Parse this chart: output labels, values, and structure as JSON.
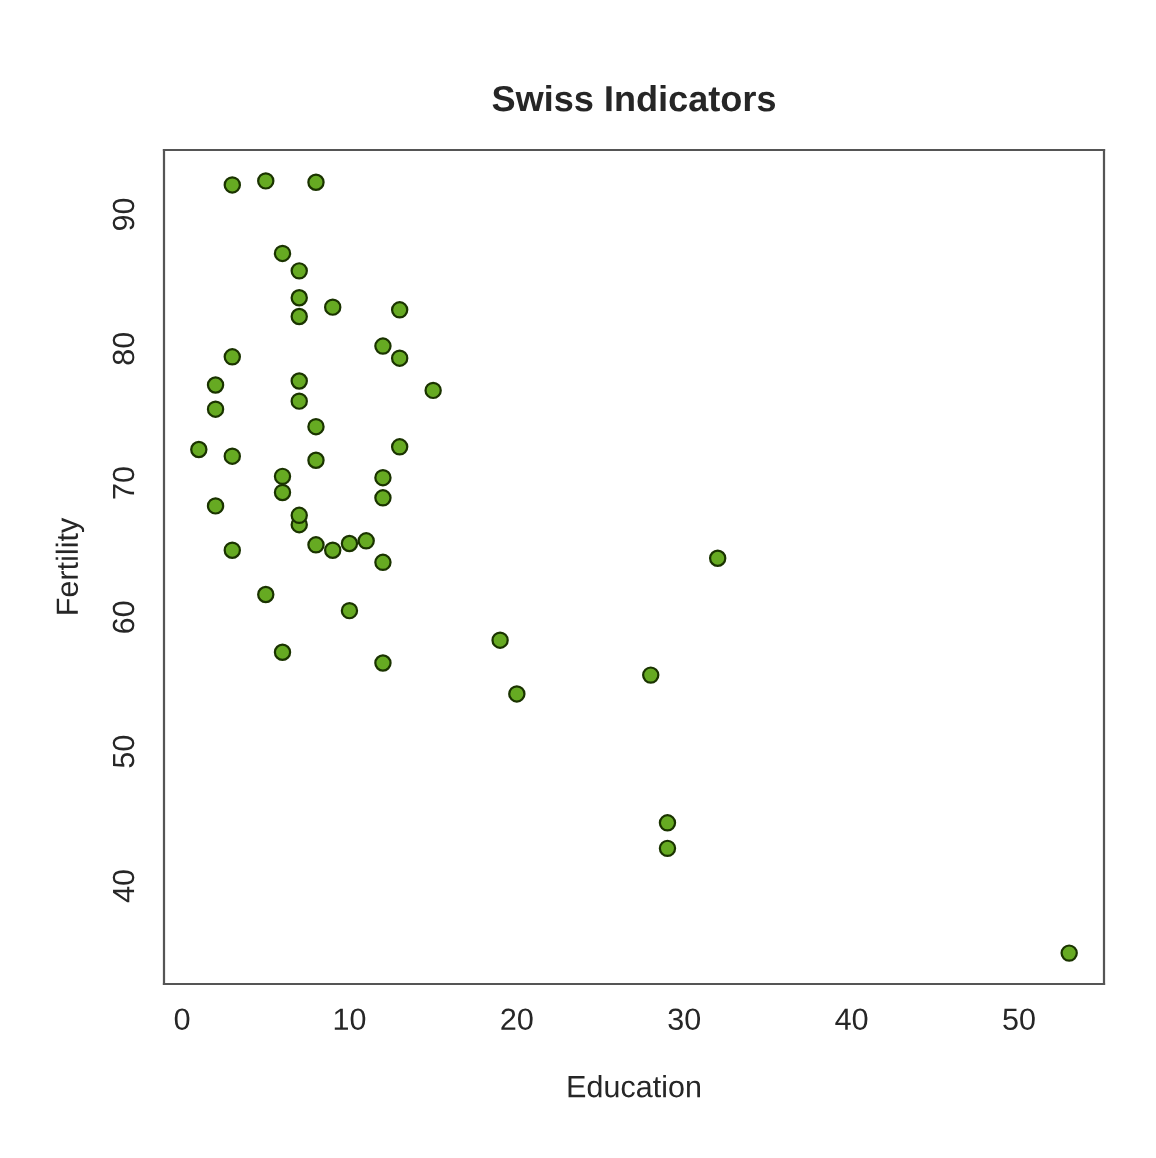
{
  "chart_data": {
    "type": "scatter",
    "title": "Swiss Indicators",
    "xlabel": "Education",
    "ylabel": "Fertility",
    "x": [
      12,
      9,
      5,
      7,
      15,
      7,
      7,
      8,
      7,
      13,
      6,
      12,
      7,
      12,
      5,
      2,
      8,
      28,
      20,
      10,
      3,
      12,
      6,
      1,
      8,
      3,
      10,
      19,
      8,
      2,
      6,
      2,
      6,
      3,
      9,
      3,
      13,
      12,
      11,
      13,
      32,
      7,
      7,
      53,
      29,
      29
    ],
    "series": [
      {
        "color": "#66aa22",
        "values": [
          80.2,
          83.1,
          92.5,
          85.8,
          76.9,
          76.1,
          83.8,
          92.4,
          82.4,
          82.9,
          87.1,
          64.1,
          66.9,
          68.9,
          61.7,
          68.3,
          71.7,
          55.7,
          54.3,
          65.5,
          65.0,
          56.6,
          57.4,
          72.5,
          74.2,
          72.0,
          60.5,
          58.3,
          65.4,
          75.5,
          69.3,
          77.3,
          70.5,
          79.4,
          65.0,
          92.2,
          79.3,
          70.4,
          65.7,
          72.7,
          64.4,
          77.6,
          67.6,
          35.0,
          44.7,
          42.8
        ]
      }
    ],
    "xlim": [
      -1.08,
      55.08
    ],
    "ylim": [
      32.7,
      94.8
    ],
    "xticks": [
      0,
      10,
      20,
      30,
      40,
      50
    ],
    "yticks": [
      40,
      50,
      60,
      70,
      80,
      90
    ],
    "marker": "circle",
    "grid": false,
    "legend": false
  }
}
